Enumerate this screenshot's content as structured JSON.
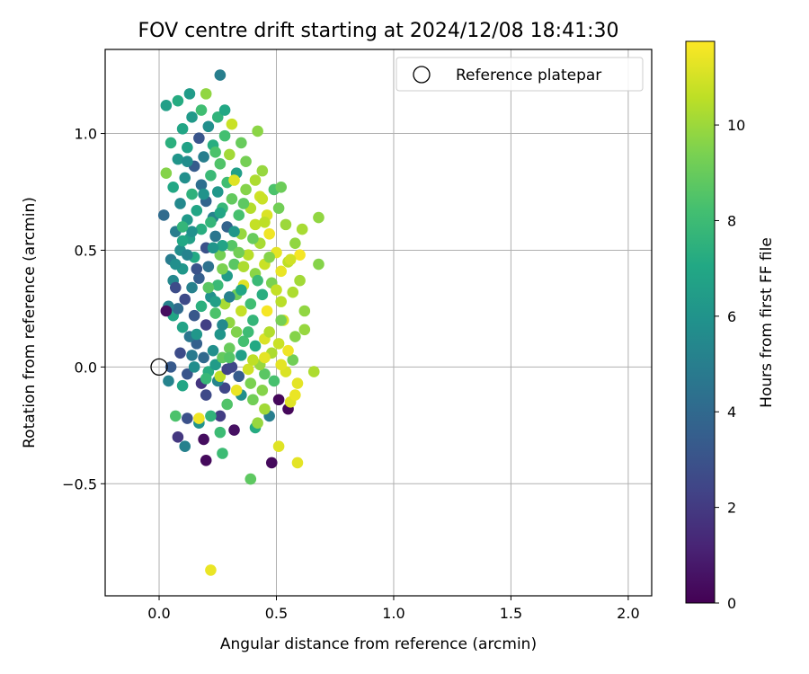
{
  "chart_data": {
    "type": "scatter",
    "title": "FOV centre drift starting at 2024/12/08 18:41:30",
    "xlabel": "Angular distance from reference (arcmin)",
    "ylabel": "Rotation from reference (arcmin)",
    "xlim": [
      -0.23,
      2.1
    ],
    "ylim": [
      -0.98,
      1.36
    ],
    "xticks": [
      0.0,
      0.5,
      1.0,
      1.5,
      2.0
    ],
    "xtick_labels": [
      "0.0",
      "0.5",
      "1.0",
      "1.5",
      "2.0"
    ],
    "yticks": [
      -0.5,
      0.0,
      0.5,
      1.0
    ],
    "ytick_labels": [
      "−0.5",
      "0.0",
      "0.5",
      "1.0"
    ],
    "grid": true,
    "legend": {
      "placement": "top-right",
      "entries": [
        "Reference platepar"
      ]
    },
    "reference_point": {
      "x": 0.0,
      "y": 0.0,
      "label": "Reference platepar",
      "marker": "open-circle"
    },
    "colorbar": {
      "label": "Hours from first FF file",
      "colormap": "viridis",
      "range": [
        0,
        11.75
      ],
      "ticks": [
        0,
        2,
        4,
        6,
        8,
        10
      ],
      "tick_labels": [
        "0",
        "2",
        "4",
        "6",
        "8",
        "10"
      ]
    },
    "series": [
      {
        "points_xyc": [
          [
            0.22,
            -0.87,
            11.4
          ],
          [
            0.39,
            -0.48,
            8.8
          ],
          [
            0.2,
            -0.4,
            0.3
          ],
          [
            0.48,
            -0.41,
            0.3
          ],
          [
            0.59,
            -0.41,
            11.3
          ],
          [
            0.27,
            -0.37,
            8.0
          ],
          [
            0.51,
            -0.34,
            11.2
          ],
          [
            0.11,
            -0.34,
            5.1
          ],
          [
            0.08,
            -0.3,
            1.9
          ],
          [
            0.19,
            -0.31,
            0.4
          ],
          [
            0.26,
            -0.28,
            8.0
          ],
          [
            0.32,
            -0.27,
            0.5
          ],
          [
            0.41,
            -0.26,
            7.2
          ],
          [
            0.17,
            -0.24,
            6.0
          ],
          [
            0.12,
            -0.22,
            2.9
          ],
          [
            0.17,
            -0.22,
            11.5
          ],
          [
            0.26,
            -0.21,
            2.1
          ],
          [
            0.07,
            -0.21,
            8.4
          ],
          [
            0.22,
            -0.21,
            7.6
          ],
          [
            0.47,
            -0.21,
            5.0
          ],
          [
            0.42,
            -0.24,
            9.9
          ],
          [
            0.55,
            -0.18,
            0.2
          ],
          [
            0.45,
            -0.18,
            10.1
          ],
          [
            0.29,
            -0.16,
            8.5
          ],
          [
            0.51,
            -0.14,
            0.2
          ],
          [
            0.56,
            -0.15,
            11.2
          ],
          [
            0.4,
            -0.14,
            9.2
          ],
          [
            0.58,
            -0.12,
            11.4
          ],
          [
            0.2,
            -0.12,
            2.6
          ],
          [
            0.35,
            -0.12,
            5.8
          ],
          [
            0.28,
            -0.09,
            2.5
          ],
          [
            0.33,
            -0.1,
            11.4
          ],
          [
            0.44,
            -0.1,
            9.6
          ],
          [
            0.59,
            -0.07,
            11.3
          ],
          [
            0.1,
            -0.08,
            6.9
          ],
          [
            0.18,
            -0.07,
            1.8
          ],
          [
            0.25,
            -0.06,
            5.3
          ],
          [
            0.39,
            -0.07,
            9.4
          ],
          [
            0.49,
            -0.06,
            8.3
          ],
          [
            0.04,
            -0.06,
            5.2
          ],
          [
            0.26,
            -0.04,
            10.6
          ],
          [
            0.34,
            -0.04,
            3.4
          ],
          [
            0.45,
            -0.03,
            8.7
          ],
          [
            0.54,
            -0.02,
            11.1
          ],
          [
            0.66,
            -0.02,
            10.3
          ],
          [
            0.12,
            -0.03,
            3.1
          ],
          [
            0.21,
            -0.02,
            7.3
          ],
          [
            0.29,
            -0.01,
            2.3
          ],
          [
            0.38,
            -0.01,
            10.9
          ],
          [
            0.05,
            0.0,
            3.3
          ],
          [
            0.15,
            0.0,
            5.7
          ],
          [
            0.24,
            0.01,
            6.4
          ],
          [
            0.31,
            0.0,
            2.5
          ],
          [
            0.43,
            0.01,
            9.9
          ],
          [
            0.52,
            0.01,
            11.3
          ],
          [
            0.57,
            0.03,
            9.2
          ],
          [
            0.19,
            0.04,
            4.0
          ],
          [
            0.27,
            0.04,
            8.9
          ],
          [
            0.35,
            0.05,
            6.6
          ],
          [
            0.48,
            0.06,
            10.3
          ],
          [
            0.55,
            0.07,
            11.5
          ],
          [
            0.09,
            0.06,
            2.7
          ],
          [
            0.23,
            0.07,
            5.8
          ],
          [
            0.3,
            0.08,
            9.0
          ],
          [
            0.41,
            0.09,
            7.1
          ],
          [
            0.51,
            0.1,
            10.8
          ],
          [
            0.16,
            0.1,
            3.6
          ],
          [
            0.36,
            0.11,
            8.2
          ],
          [
            0.45,
            0.12,
            11.1
          ],
          [
            0.58,
            0.13,
            9.6
          ],
          [
            0.13,
            0.13,
            4.6
          ],
          [
            0.26,
            0.14,
            6.1
          ],
          [
            0.33,
            0.15,
            9.5
          ],
          [
            0.47,
            0.15,
            10.4
          ],
          [
            0.62,
            0.16,
            9.9
          ],
          [
            0.1,
            0.17,
            6.8
          ],
          [
            0.2,
            0.18,
            2.2
          ],
          [
            0.3,
            0.19,
            9.8
          ],
          [
            0.4,
            0.2,
            7.7
          ],
          [
            0.53,
            0.2,
            11.0
          ],
          [
            0.06,
            0.22,
            6.9
          ],
          [
            0.15,
            0.22,
            3.2
          ],
          [
            0.24,
            0.23,
            8.4
          ],
          [
            0.35,
            0.24,
            10.7
          ],
          [
            0.46,
            0.24,
            11.6
          ],
          [
            0.62,
            0.24,
            9.8
          ],
          [
            0.08,
            0.25,
            4.1
          ],
          [
            0.18,
            0.26,
            7.4
          ],
          [
            0.28,
            0.27,
            10.2
          ],
          [
            0.39,
            0.27,
            8.1
          ],
          [
            0.52,
            0.28,
            10.5
          ],
          [
            0.11,
            0.29,
            2.6
          ],
          [
            0.22,
            0.3,
            5.9
          ],
          [
            0.33,
            0.31,
            9.1
          ],
          [
            0.44,
            0.31,
            7.3
          ],
          [
            0.57,
            0.32,
            10.3
          ],
          [
            0.14,
            0.34,
            5.1
          ],
          [
            0.25,
            0.35,
            7.9
          ],
          [
            0.36,
            0.35,
            11.2
          ],
          [
            0.48,
            0.36,
            9.4
          ],
          [
            0.6,
            0.37,
            10.1
          ],
          [
            0.06,
            0.37,
            5.4
          ],
          [
            0.17,
            0.38,
            3.5
          ],
          [
            0.29,
            0.39,
            6.4
          ],
          [
            0.41,
            0.4,
            9.7
          ],
          [
            0.52,
            0.41,
            11.4
          ],
          [
            0.1,
            0.42,
            6.2
          ],
          [
            0.21,
            0.43,
            4.4
          ],
          [
            0.32,
            0.44,
            8.7
          ],
          [
            0.45,
            0.44,
            10.8
          ],
          [
            0.68,
            0.44,
            9.6
          ],
          [
            0.05,
            0.46,
            4.9
          ],
          [
            0.15,
            0.47,
            7.1
          ],
          [
            0.26,
            0.48,
            9.3
          ],
          [
            0.38,
            0.48,
            10.5
          ],
          [
            0.5,
            0.49,
            11.3
          ],
          [
            0.09,
            0.5,
            5.7
          ],
          [
            0.2,
            0.51,
            2.9
          ],
          [
            0.31,
            0.52,
            8.6
          ],
          [
            0.43,
            0.53,
            10.2
          ],
          [
            0.58,
            0.53,
            9.8
          ],
          [
            0.13,
            0.55,
            6.6
          ],
          [
            0.24,
            0.56,
            4.6
          ],
          [
            0.35,
            0.57,
            9.9
          ],
          [
            0.47,
            0.57,
            11.5
          ],
          [
            0.07,
            0.58,
            5.0
          ],
          [
            0.18,
            0.59,
            7.3
          ],
          [
            0.29,
            0.6,
            3.7
          ],
          [
            0.41,
            0.61,
            10.7
          ],
          [
            0.54,
            0.61,
            10.0
          ],
          [
            0.12,
            0.63,
            6.3
          ],
          [
            0.23,
            0.64,
            5.2
          ],
          [
            0.34,
            0.65,
            8.3
          ],
          [
            0.46,
            0.65,
            11.1
          ],
          [
            0.68,
            0.64,
            9.8
          ],
          [
            0.02,
            0.65,
            4.1
          ],
          [
            0.16,
            0.67,
            6.9
          ],
          [
            0.27,
            0.68,
            7.8
          ],
          [
            0.39,
            0.68,
            10.4
          ],
          [
            0.51,
            0.68,
            9.2
          ],
          [
            0.09,
            0.7,
            5.5
          ],
          [
            0.2,
            0.71,
            3.8
          ],
          [
            0.31,
            0.72,
            8.9
          ],
          [
            0.43,
            0.73,
            10.9
          ],
          [
            0.14,
            0.74,
            7.5
          ],
          [
            0.25,
            0.75,
            6.2
          ],
          [
            0.37,
            0.76,
            9.6
          ],
          [
            0.49,
            0.76,
            8.4
          ],
          [
            0.06,
            0.77,
            7.0
          ],
          [
            0.18,
            0.78,
            4.3
          ],
          [
            0.29,
            0.79,
            8.1
          ],
          [
            0.41,
            0.8,
            10.3
          ],
          [
            0.52,
            0.77,
            9.1
          ],
          [
            0.11,
            0.81,
            5.8
          ],
          [
            0.22,
            0.82,
            7.9
          ],
          [
            0.33,
            0.83,
            6.6
          ],
          [
            0.44,
            0.84,
            9.9
          ],
          [
            0.03,
            0.83,
            9.6
          ],
          [
            0.15,
            0.86,
            3.4
          ],
          [
            0.26,
            0.87,
            8.5
          ],
          [
            0.37,
            0.88,
            9.3
          ],
          [
            0.08,
            0.89,
            6.1
          ],
          [
            0.19,
            0.9,
            5.0
          ],
          [
            0.3,
            0.91,
            10.1
          ],
          [
            0.12,
            0.94,
            6.7
          ],
          [
            0.23,
            0.95,
            7.3
          ],
          [
            0.35,
            0.96,
            9.0
          ],
          [
            0.05,
            0.96,
            7.4
          ],
          [
            0.17,
            0.98,
            3.1
          ],
          [
            0.28,
            0.99,
            8.2
          ],
          [
            0.42,
            1.01,
            9.7
          ],
          [
            0.1,
            1.02,
            6.9
          ],
          [
            0.21,
            1.03,
            5.8
          ],
          [
            0.31,
            1.04,
            10.8
          ],
          [
            0.14,
            1.07,
            6.3
          ],
          [
            0.25,
            1.07,
            7.6
          ],
          [
            0.03,
            1.12,
            6.6
          ],
          [
            0.18,
            1.1,
            8.1
          ],
          [
            0.28,
            1.1,
            7.0
          ],
          [
            0.08,
            1.14,
            7.2
          ],
          [
            0.13,
            1.17,
            6.4
          ],
          [
            0.2,
            1.17,
            9.8
          ],
          [
            0.26,
            1.25,
            5.0
          ],
          [
            0.04,
            0.26,
            5.1
          ],
          [
            0.03,
            0.24,
            0.4
          ],
          [
            0.07,
            0.34,
            2.7
          ],
          [
            0.16,
            0.42,
            3.0
          ],
          [
            0.24,
            0.28,
            6.6
          ],
          [
            0.36,
            0.43,
            10.3
          ],
          [
            0.47,
            0.47,
            9.6
          ],
          [
            0.55,
            0.45,
            10.6
          ],
          [
            0.14,
            0.58,
            5.9
          ],
          [
            0.27,
            0.52,
            6.8
          ],
          [
            0.4,
            0.55,
            9.0
          ],
          [
            0.6,
            0.48,
            11.6
          ],
          [
            0.61,
            0.59,
            10.2
          ],
          [
            0.12,
            0.48,
            5.2
          ],
          [
            0.22,
            0.62,
            7.7
          ],
          [
            0.32,
            0.58,
            6.2
          ],
          [
            0.45,
            0.62,
            10.6
          ],
          [
            0.1,
            0.6,
            7.7
          ],
          [
            0.26,
            0.66,
            6.9
          ],
          [
            0.36,
            0.7,
            8.8
          ],
          [
            0.19,
            0.74,
            6.0
          ],
          [
            0.32,
            0.8,
            11.2
          ],
          [
            0.12,
            0.88,
            5.7
          ],
          [
            0.24,
            0.92,
            8.4
          ],
          [
            0.21,
            0.34,
            8.7
          ],
          [
            0.3,
            0.3,
            5.1
          ],
          [
            0.42,
            0.37,
            7.9
          ],
          [
            0.5,
            0.33,
            10.7
          ],
          [
            0.07,
            0.44,
            5.8
          ],
          [
            0.27,
            0.42,
            9.4
          ],
          [
            0.38,
            0.15,
            8.0
          ],
          [
            0.45,
            0.04,
            11.3
          ],
          [
            0.14,
            0.05,
            4.8
          ],
          [
            0.27,
            0.18,
            5.5
          ],
          [
            0.35,
            0.33,
            7.0
          ],
          [
            0.52,
            0.2,
            9.3
          ],
          [
            0.3,
            0.04,
            8.6
          ],
          [
            0.2,
            -0.05,
            7.8
          ],
          [
            0.4,
            0.03,
            10.6
          ],
          [
            0.16,
            0.14,
            6.2
          ],
          [
            0.23,
            0.51,
            6.1
          ],
          [
            0.1,
            0.54,
            7.0
          ],
          [
            0.34,
            0.49,
            9.2
          ],
          [
            0.44,
            0.72,
            10.8
          ],
          [
            0.56,
            0.46,
            10.9
          ]
        ]
      }
    ]
  }
}
